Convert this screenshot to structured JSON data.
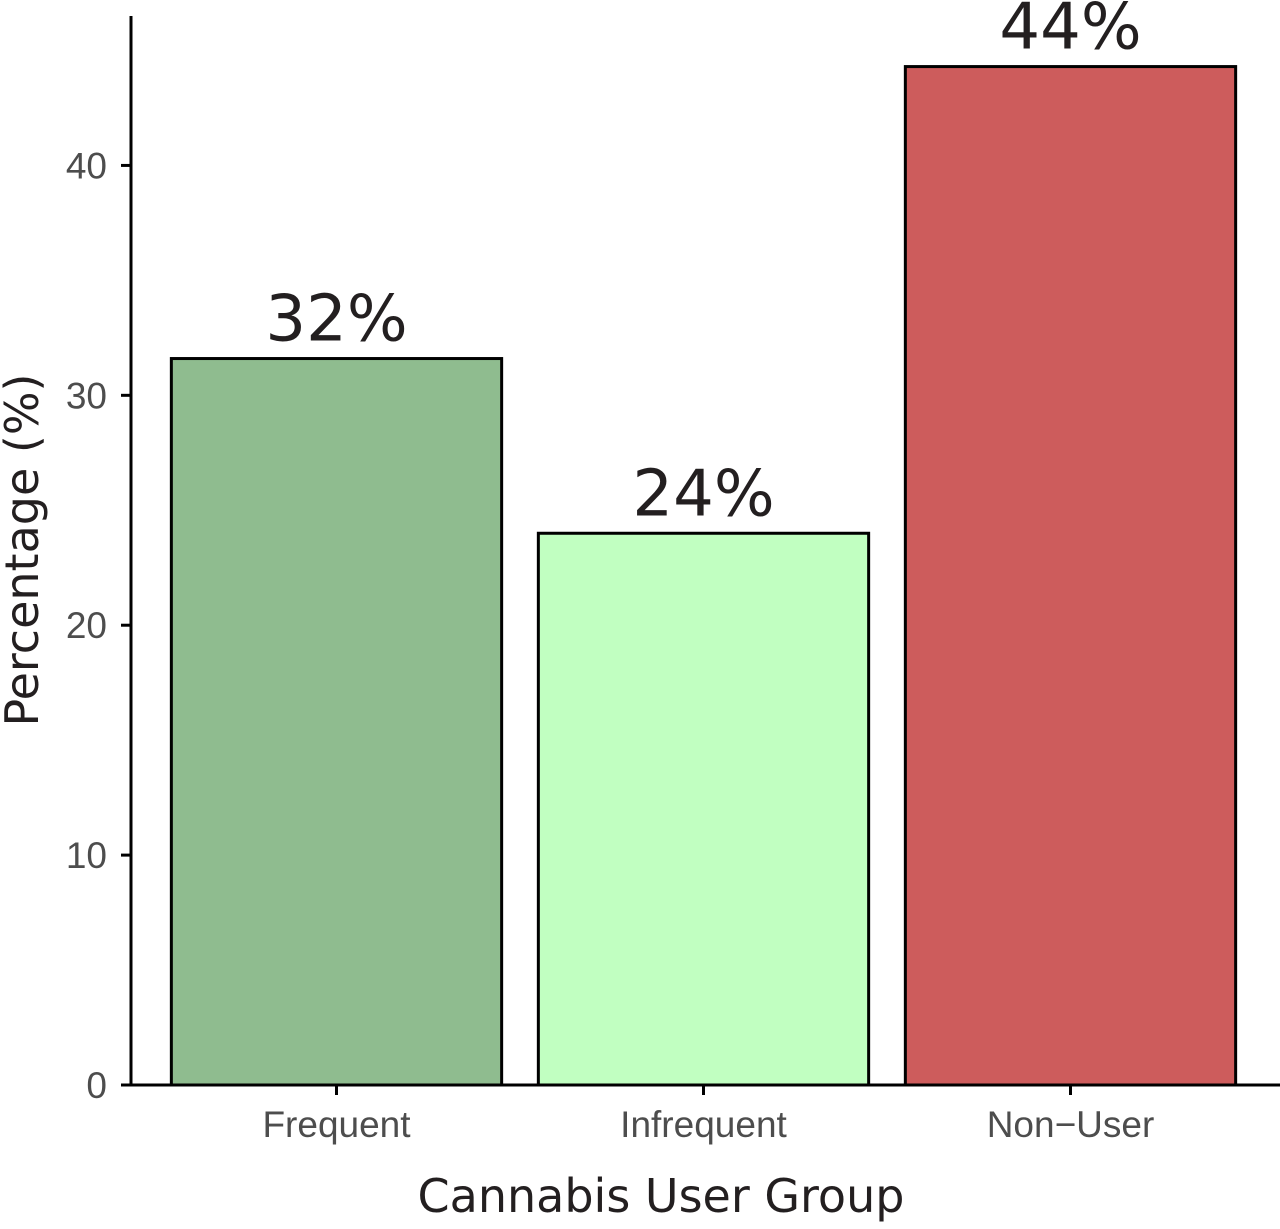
{
  "chart_data": {
    "type": "bar",
    "categories": [
      "Frequent",
      "Infrequent",
      "Non−User"
    ],
    "values": [
      31.6,
      24.0,
      44.3
    ],
    "data_labels": [
      "32%",
      "24%",
      "44%"
    ],
    "colors": [
      "#8fbc8f",
      "#c1ffc1",
      "#cd5c5c"
    ],
    "edge_color": "#000000",
    "title": "",
    "xlabel": "Cannabis User Group",
    "ylabel": "Percentage (%)",
    "ylim": [
      0,
      46.5
    ],
    "yticks": [
      0,
      10,
      20,
      30,
      40
    ],
    "grid": false,
    "legend": "none"
  }
}
